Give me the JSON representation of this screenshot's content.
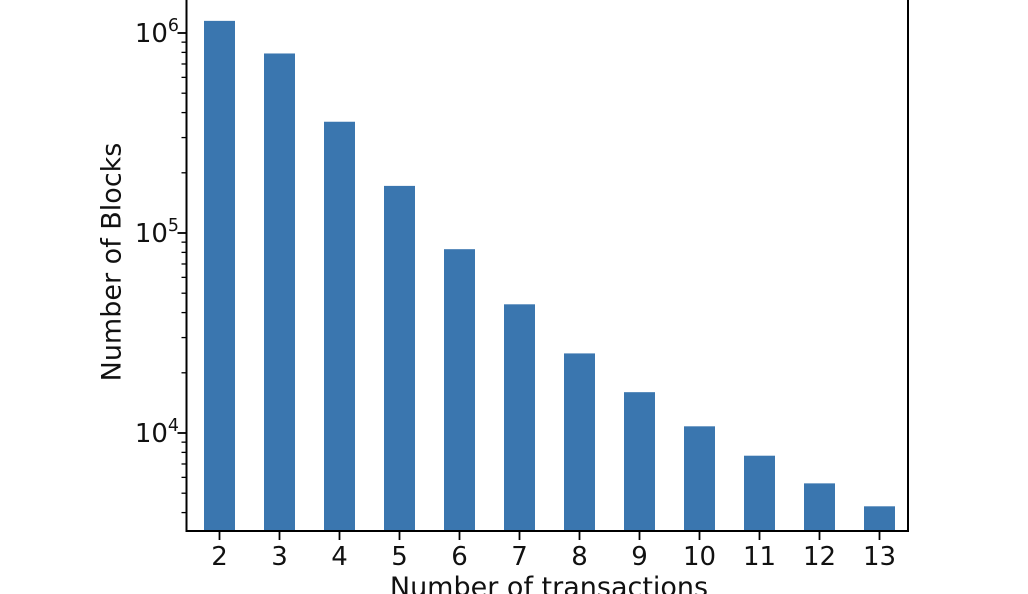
{
  "figure": {
    "background": "#ffffff"
  },
  "chart_data": {
    "type": "bar",
    "title": "",
    "xlabel": "Number of transactions",
    "ylabel": "Number of Blocks",
    "categories": [
      "2",
      "3",
      "4",
      "5",
      "6",
      "7",
      "8",
      "9",
      "10",
      "11",
      "12",
      "13"
    ],
    "values": [
      1150000,
      790000,
      360000,
      172000,
      83000,
      44000,
      25000,
      16000,
      10800,
      7700,
      5600,
      4300
    ],
    "yscale": "log",
    "ytick_base": "10",
    "ytick_exponents": [
      4,
      5,
      6
    ],
    "ylim_visible": [
      3200,
      1460000
    ],
    "grid": false,
    "legend": null,
    "bar_color": "#3a76af",
    "axis_color": "#000000",
    "text_color": "#111111"
  }
}
